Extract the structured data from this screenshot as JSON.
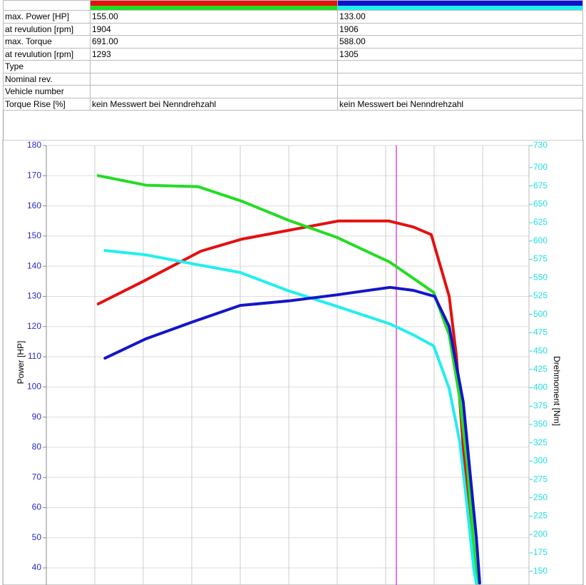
{
  "table": {
    "header_colors": [
      [
        "#e41010",
        "#22dd22"
      ],
      [
        "#1010d0",
        "#22eeee"
      ]
    ],
    "rows": [
      [
        "max. Power [HP]",
        "155.00",
        "133.00"
      ],
      [
        "at revulution [rpm]",
        "1904",
        "1906"
      ],
      [
        "max. Torque",
        "691.00",
        "588.00"
      ],
      [
        "at revulution [rpm]",
        "1293",
        "1305"
      ],
      [
        "Type",
        "",
        ""
      ],
      [
        "Nominal rev.",
        "",
        ""
      ],
      [
        "Vehicle number",
        "",
        ""
      ],
      [
        "Torque Rise [%]",
        "kein Messwert bei Nenndrehzahl",
        "kein Messwert bei Nenndrehzahl"
      ]
    ]
  },
  "chart_data": {
    "type": "line",
    "ylabel": "Power [HP]",
    "y2label": "Drehmoment [Nm]",
    "xlim": [
      0,
      10
    ],
    "xgrid": [
      1,
      2,
      3,
      4,
      5,
      6,
      7,
      8,
      9
    ],
    "ylim": [
      35,
      180
    ],
    "yticks": [
      180,
      170,
      160,
      150,
      140,
      130,
      120,
      110,
      100,
      90,
      80,
      70,
      60,
      50,
      40
    ],
    "y2lim": [
      134,
      730
    ],
    "y2ticks": [
      730,
      700,
      675,
      650,
      625,
      600,
      575,
      550,
      525,
      500,
      475,
      450,
      425,
      400,
      375,
      350,
      325,
      300,
      275,
      250,
      225,
      200,
      175,
      150
    ],
    "grid": true,
    "cursor_x": 7.22,
    "cursor_color": "#cc22cc",
    "ycolor": "#2a2ac8",
    "y2color": "#22dddd",
    "series": [
      {
        "color": "#e41010",
        "axis": "y",
        "x": [
          1.07,
          2.0,
          3.19,
          4.04,
          6.03,
          7.06,
          7.57,
          7.94,
          8.31,
          8.46,
          8.6,
          8.75,
          8.87
        ],
        "values": [
          127.5,
          135,
          145,
          149,
          155,
          155,
          153,
          150.5,
          130,
          110,
          80,
          50,
          35
        ]
      },
      {
        "color": "#22dd22",
        "axis": "y2",
        "x": [
          1.07,
          2.06,
          3.13,
          4.04,
          5.0,
          5.99,
          7.09,
          7.99,
          8.31,
          8.53,
          8.68,
          8.85,
          8.9
        ],
        "values": [
          689,
          676,
          674,
          654,
          628,
          605,
          571,
          530,
          472,
          385,
          297,
          161,
          134
        ]
      },
      {
        "color": "#22eeee",
        "axis": "y2",
        "x": [
          1.21,
          2.06,
          3.01,
          4.0,
          5.0,
          5.99,
          7.09,
          7.57,
          7.99,
          8.31,
          8.53,
          8.68,
          8.82,
          8.87
        ],
        "values": [
          587,
          581,
          569,
          557,
          532,
          511,
          487,
          472,
          457,
          399,
          326,
          239,
          151,
          134
        ]
      },
      {
        "color": "#1515c8",
        "axis": "y",
        "x": [
          1.21,
          2.06,
          3.01,
          4.0,
          5.0,
          5.99,
          7.09,
          7.57,
          8.01,
          8.31,
          8.6,
          8.75,
          8.87,
          8.94
        ],
        "values": [
          109.5,
          116,
          121.5,
          127,
          128.5,
          130.5,
          133,
          132,
          130,
          120,
          95,
          70,
          50,
          35
        ]
      }
    ]
  }
}
